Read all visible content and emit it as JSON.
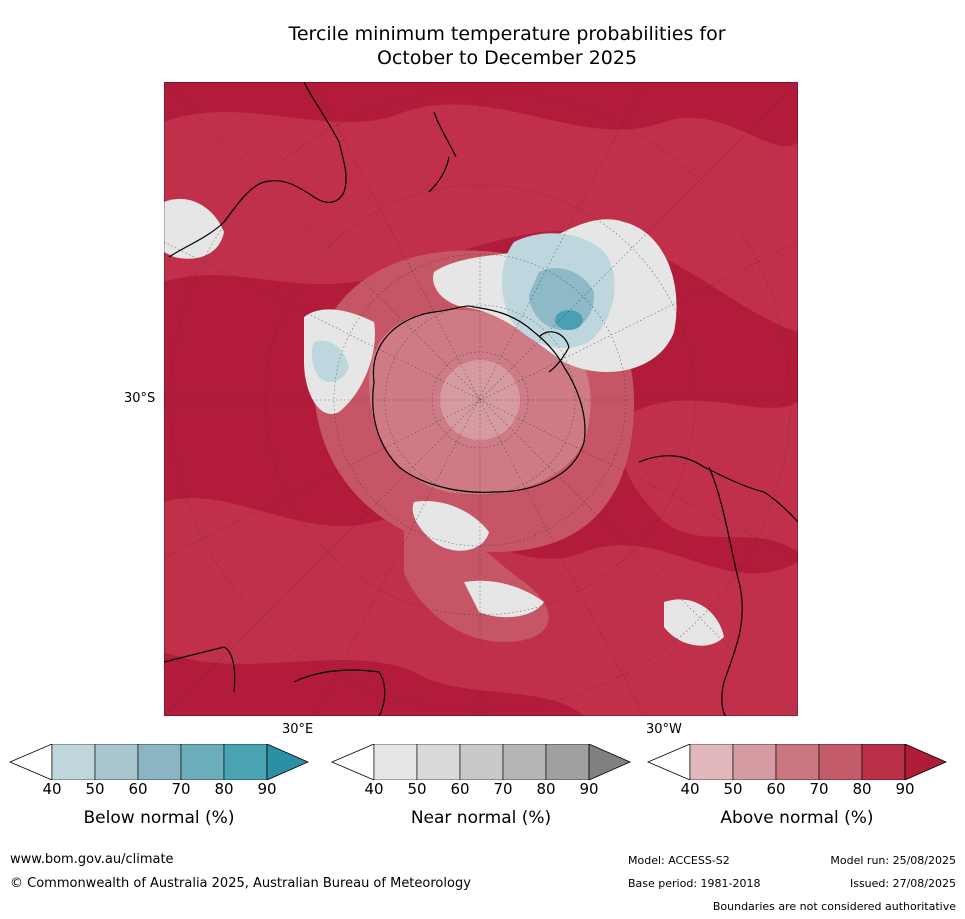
{
  "title_line1": "Tercile minimum temperature probabilities for",
  "title_line2": "October to December 2025",
  "map": {
    "projection": "south-polar stereographic",
    "lat_label": "30°S",
    "lon_label_east": "30°E",
    "lon_label_west": "30°W",
    "colors": {
      "ocean_base": "#b31b3a",
      "above_90": "#c0304a",
      "above_80": "#c65666",
      "above_70": "#ce7b86",
      "above_60": "#d69aa2",
      "above_50": "#e1b9bd",
      "near": "#e6e6e6",
      "near_dark": "#cfcfcf",
      "below_light": "#bed7de",
      "below_mid": "#8eb9c6",
      "below_dark": "#4aa0b2"
    }
  },
  "colorbars": [
    {
      "label": "Below normal (%)",
      "ticks": [
        "40",
        "50",
        "60",
        "70",
        "80",
        "90"
      ],
      "colors": [
        "#bfd6dd",
        "#a7c6cd",
        "#8bb5c2",
        "#6badba",
        "#4aa3b3",
        "#2b90a6"
      ]
    },
    {
      "label": "Near normal (%)",
      "ticks": [
        "40",
        "50",
        "60",
        "70",
        "80",
        "90"
      ],
      "colors": [
        "#e6e6e6",
        "#d9d9d9",
        "#c9c9c9",
        "#b5b5b5",
        "#a0a0a0",
        "#808080"
      ]
    },
    {
      "label": "Above normal (%)",
      "ticks": [
        "40",
        "50",
        "60",
        "70",
        "80",
        "90"
      ],
      "colors": [
        "#e0b8bc",
        "#d69aa2",
        "#cb7780",
        "#c45b68",
        "#ba3048",
        "#ae1c38"
      ]
    }
  ],
  "footer": {
    "url": "www.bom.gov.au/climate",
    "copyright": "© Commonwealth of Australia 2025, Australian Bureau of Meteorology",
    "model": "Model: ACCESS-S2",
    "base_period": "Base period: 1981-2018",
    "model_run": "Model run: 25/08/2025",
    "issued": "Issued: 27/08/2025",
    "disclaimer": "Boundaries are not considered authoritative"
  }
}
